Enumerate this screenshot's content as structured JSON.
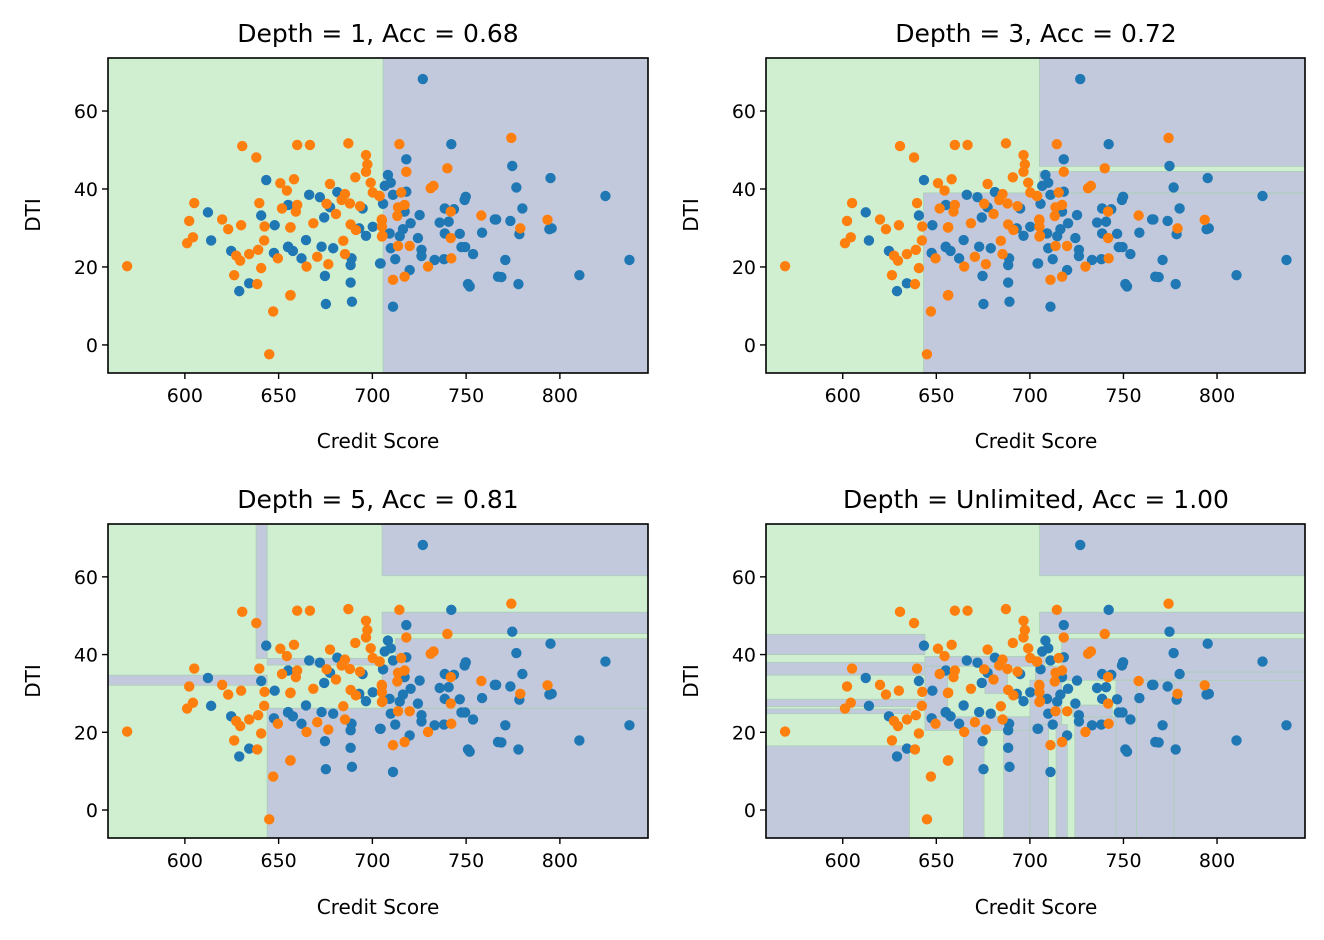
{
  "chart_data": {
    "type": "scatter",
    "figure_description": "Decision tree decision boundaries at varying depths",
    "region_colors": {
      "class_0": "#c3c9dc",
      "class_1": "#d0eed0"
    },
    "point_colors": {
      "class_0": "#1f77b4",
      "class_1": "#ff7f0e"
    },
    "xlim": [
      559,
      847
    ],
    "ylim": [
      -7.2,
      73.6
    ],
    "xticks": [
      600,
      650,
      700,
      750,
      800
    ],
    "yticks": [
      0,
      20,
      40,
      60
    ],
    "points": {
      "class_0": [
        [
          643.4,
          42.3
        ],
        [
          612.3,
          34.0
        ],
        [
          614.0,
          26.8
        ],
        [
          624.7,
          24.1
        ],
        [
          634.3,
          15.8
        ],
        [
          629.0,
          13.8
        ],
        [
          640.7,
          33.2
        ],
        [
          647.9,
          30.7
        ],
        [
          647.5,
          23.6
        ],
        [
          655.0,
          25.1
        ],
        [
          657.6,
          24.1
        ],
        [
          655.1,
          35.9
        ],
        [
          666.3,
          38.5
        ],
        [
          672.0,
          37.9
        ],
        [
          681.3,
          39.2
        ],
        [
          694.8,
          35.0
        ],
        [
          677.4,
          35.3
        ],
        [
          674.3,
          32.7
        ],
        [
          693.0,
          29.9
        ],
        [
          696.6,
          28.0
        ],
        [
          700.2,
          30.3
        ],
        [
          664.6,
          26.9
        ],
        [
          655.1,
          25.2
        ],
        [
          662.2,
          22.2
        ],
        [
          672.9,
          25.2
        ],
        [
          679.1,
          24.8
        ],
        [
          688.9,
          22.2
        ],
        [
          688.4,
          20.5
        ],
        [
          674.7,
          17.7
        ],
        [
          688.4,
          16.0
        ],
        [
          675.2,
          10.5
        ],
        [
          689.1,
          11.1
        ],
        [
          704.1,
          20.9
        ],
        [
          742.1,
          51.5
        ],
        [
          718.1,
          47.6
        ],
        [
          708.3,
          43.6
        ],
        [
          706.6,
          40.8
        ],
        [
          709.8,
          41.6
        ],
        [
          711.0,
          38.5
        ],
        [
          718.1,
          39.3
        ],
        [
          705.7,
          36.2
        ],
        [
          717.2,
          34.2
        ],
        [
          725.2,
          33.3
        ],
        [
          749.2,
          37.2
        ],
        [
          749.8,
          38.0
        ],
        [
          738.6,
          35.0
        ],
        [
          743.5,
          34.8
        ],
        [
          765.3,
          32.2
        ],
        [
          735.9,
          31.4
        ],
        [
          740.7,
          31.6
        ],
        [
          720.4,
          31.2
        ],
        [
          738.6,
          28.6
        ],
        [
          746.6,
          28.5
        ],
        [
          758.5,
          28.8
        ],
        [
          716.3,
          29.7
        ],
        [
          709.2,
          28.6
        ],
        [
          714.6,
          27.9
        ],
        [
          724.3,
          27.4
        ],
        [
          709.8,
          24.8
        ],
        [
          726.2,
          24.4
        ],
        [
          726.2,
          22.8
        ],
        [
          747.5,
          25.1
        ],
        [
          749.5,
          25.1
        ],
        [
          753.7,
          23.3
        ],
        [
          712.2,
          22.0
        ],
        [
          733.2,
          21.8
        ],
        [
          738.2,
          22.0
        ],
        [
          704.4,
          20.9
        ],
        [
          719.9,
          19.2
        ],
        [
          751.0,
          15.6
        ],
        [
          751.9,
          15.0
        ],
        [
          711.0,
          9.8
        ],
        [
          767.0,
          17.5
        ],
        [
          726.9,
          68.2
        ],
        [
          774.6,
          45.9
        ],
        [
          795.0,
          42.8
        ],
        [
          776.8,
          40.4
        ],
        [
          824.3,
          38.2
        ],
        [
          780.0,
          35.0
        ],
        [
          766.0,
          32.2
        ],
        [
          773.6,
          31.8
        ],
        [
          778.4,
          28.4
        ],
        [
          794.4,
          29.7
        ],
        [
          795.6,
          29.9
        ],
        [
          770.9,
          21.8
        ],
        [
          837.1,
          21.8
        ],
        [
          768.8,
          17.4
        ],
        [
          777.9,
          15.6
        ],
        [
          810.4,
          17.9
        ]
      ],
      "class_1": [
        [
          569.2,
          20.2
        ],
        [
          630.6,
          51.0
        ],
        [
          638.1,
          48.1
        ],
        [
          605.0,
          36.4
        ],
        [
          602.3,
          31.8
        ],
        [
          619.9,
          32.2
        ],
        [
          623.1,
          29.7
        ],
        [
          630.0,
          30.7
        ],
        [
          604.3,
          27.6
        ],
        [
          601.2,
          26.1
        ],
        [
          627.4,
          22.9
        ],
        [
          629.5,
          21.6
        ],
        [
          634.3,
          23.3
        ],
        [
          639.1,
          24.4
        ],
        [
          626.3,
          17.9
        ],
        [
          638.6,
          15.6
        ],
        [
          640.7,
          19.7
        ],
        [
          639.7,
          36.4
        ],
        [
          642.5,
          30.4
        ],
        [
          642.3,
          26.8
        ],
        [
          649.6,
          22.2
        ],
        [
          656.2,
          12.7
        ],
        [
          647.1,
          8.6
        ],
        [
          645.0,
          -2.4
        ],
        [
          656.2,
          30.1
        ],
        [
          651.8,
          35.0
        ],
        [
          650.9,
          41.5
        ],
        [
          654.4,
          39.6
        ],
        [
          658.2,
          42.5
        ],
        [
          659.9,
          51.3
        ],
        [
          666.7,
          51.3
        ],
        [
          687.2,
          51.7
        ],
        [
          696.6,
          48.7
        ],
        [
          697.3,
          46.3
        ],
        [
          696.6,
          44.4
        ],
        [
          690.9,
          43.0
        ],
        [
          677.4,
          41.3
        ],
        [
          699.1,
          41.6
        ],
        [
          700.2,
          39.1
        ],
        [
          703.7,
          38.2
        ],
        [
          685.4,
          38.7
        ],
        [
          683.6,
          37.2
        ],
        [
          688.0,
          36.3
        ],
        [
          693.4,
          35.6
        ],
        [
          675.6,
          36.2
        ],
        [
          659.9,
          35.9
        ],
        [
          659.2,
          34.2
        ],
        [
          680.6,
          33.6
        ],
        [
          668.5,
          31.2
        ],
        [
          656.4,
          30.2
        ],
        [
          688.4,
          30.9
        ],
        [
          691.2,
          29.5
        ],
        [
          705.0,
          32.2
        ],
        [
          705.4,
          28.0
        ],
        [
          664.9,
          20.1
        ],
        [
          684.5,
          26.7
        ],
        [
          685.4,
          23.3
        ],
        [
          670.6,
          22.6
        ],
        [
          676.5,
          20.7
        ],
        [
          656.4,
          12.8
        ],
        [
          714.4,
          51.5
        ],
        [
          718.1,
          44.4
        ],
        [
          740.0,
          45.3
        ],
        [
          732.6,
          40.8
        ],
        [
          731.1,
          40.2
        ],
        [
          715.4,
          39.1
        ],
        [
          703.9,
          38.2
        ],
        [
          717.2,
          35.9
        ],
        [
          713.7,
          35.3
        ],
        [
          713.3,
          33.1
        ],
        [
          741.8,
          34.2
        ],
        [
          758.1,
          33.2
        ],
        [
          705.1,
          31.9
        ],
        [
          705.1,
          30.3
        ],
        [
          705.1,
          27.8
        ],
        [
          741.8,
          27.4
        ],
        [
          713.7,
          25.4
        ],
        [
          719.9,
          25.4
        ],
        [
          742.1,
          22.2
        ],
        [
          729.7,
          20.1
        ],
        [
          717.2,
          17.5
        ],
        [
          711.0,
          16.7
        ],
        [
          774.1,
          53.1
        ],
        [
          793.4,
          32.1
        ],
        [
          778.9,
          29.9
        ]
      ]
    },
    "panels": [
      {
        "title": "Depth = 1, Acc = 0.68",
        "depth": "1",
        "accuracy": 0.68,
        "xlabel": "Credit Score",
        "ylabel": "DTI",
        "class_0_regions": [
          [
            705.7,
            847,
            -7.2,
            73.6
          ]
        ]
      },
      {
        "title": "Depth = 3, Acc = 0.72",
        "depth": "3",
        "accuracy": 0.72,
        "xlabel": "Credit Score",
        "ylabel": "DTI",
        "class_0_regions": [
          [
            643.2,
            847,
            -7.2,
            39.0
          ],
          [
            705.1,
            847,
            39.0,
            44.5
          ],
          [
            705.1,
            847,
            45.8,
            73.6
          ]
        ]
      },
      {
        "title": "Depth = 5, Acc = 0.81",
        "depth": "5",
        "accuracy": 0.81,
        "xlabel": "Credit Score",
        "ylabel": "DTI",
        "class_0_regions": [
          [
            638.0,
            643.9,
            39.0,
            73.6
          ],
          [
            559,
            643.9,
            32.1,
            34.7
          ],
          [
            643.9,
            705.2,
            37.3,
            39.0
          ],
          [
            705.2,
            847,
            60.3,
            73.6
          ],
          [
            705.2,
            847,
            45.4,
            50.9
          ],
          [
            643.9,
            847,
            -7.2,
            26.2
          ],
          [
            712.2,
            847,
            26.2,
            44.1
          ],
          [
            705.2,
            712.2,
            26.2,
            37.3
          ]
        ]
      },
      {
        "title": "Depth = Unlimited, Acc = 1.00",
        "depth": "Unlimited",
        "accuracy": 1.0,
        "xlabel": "Credit Score",
        "ylabel": "DTI",
        "class_0_regions": [
          [
            705.2,
            847,
            60.3,
            73.6
          ],
          [
            705.2,
            847,
            45.4,
            50.9
          ],
          [
            717.0,
            847,
            33.4,
            44.1
          ],
          [
            746.0,
            847,
            -7.2,
            33.4
          ],
          [
            559,
            643.9,
            40.0,
            45.2
          ],
          [
            559,
            643.9,
            34.7,
            38.0
          ],
          [
            559,
            643.9,
            26.6,
            28.5
          ],
          [
            559,
            636.2,
            24.8,
            26.0
          ],
          [
            559,
            635.6,
            -7.2,
            16.5
          ],
          [
            643.9,
            708.0,
            37.0,
            39.5
          ],
          [
            643.9,
            656.0,
            24.0,
            37.0
          ],
          [
            643.9,
            700.0,
            20.5,
            24.0
          ],
          [
            664.5,
            675.5,
            -7.2,
            20.5
          ],
          [
            686.0,
            700.0,
            -7.2,
            20.5
          ],
          [
            676.0,
            688.0,
            30.0,
            37.0
          ],
          [
            700.0,
            717.0,
            22.0,
            33.4
          ],
          [
            700.0,
            710.0,
            -7.2,
            22.0
          ],
          [
            714.0,
            720.0,
            -7.2,
            22.0
          ],
          [
            724.0,
            746.0,
            -7.2,
            24.0
          ],
          [
            723.0,
            744.0,
            24.0,
            27.0
          ],
          [
            703.0,
            715.0,
            33.4,
            37.0
          ],
          [
            757.0,
            777.0,
            -7.2,
            33.4
          ],
          [
            782.0,
            847,
            33.4,
            35.5
          ]
        ]
      }
    ]
  }
}
